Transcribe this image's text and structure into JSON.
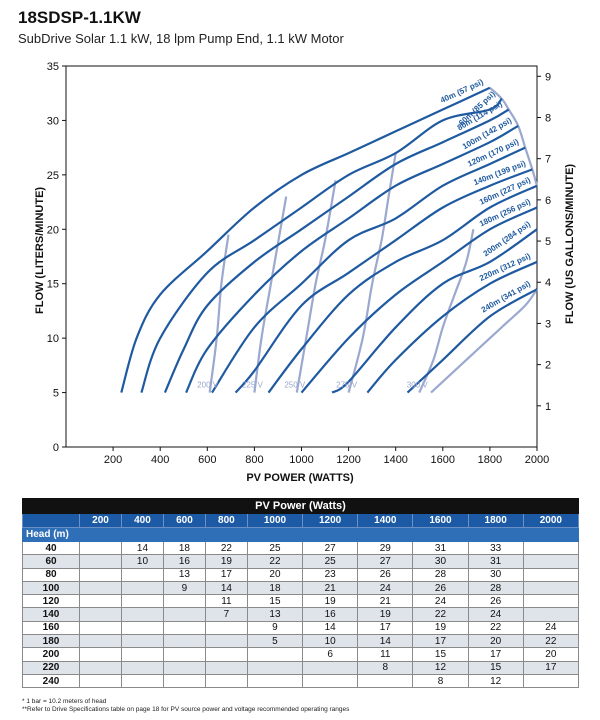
{
  "header": {
    "title": "18SDSP-1.1KW",
    "subtitle": "SubDrive Solar 1.1 kW, 18 lpm Pump End, 1.1 kW Motor"
  },
  "chart_data": {
    "type": "line",
    "xlabel": "PV POWER (WATTS)",
    "ylabel": "FLOW (LITERS/MINUTE)",
    "y2label": "FLOW (US GALLONS/MINUTE)",
    "xlim": [
      0,
      2000
    ],
    "ylim": [
      0,
      35
    ],
    "y2lim": [
      0,
      9.25
    ],
    "x_ticks": [
      200,
      400,
      600,
      800,
      1000,
      1200,
      1400,
      1600,
      1800,
      2000
    ],
    "y_ticks": [
      0,
      5,
      10,
      15,
      20,
      25,
      30,
      35
    ],
    "y2_ticks": [
      1,
      2,
      3,
      4,
      5,
      6,
      7,
      8,
      9
    ],
    "grid": false,
    "head_curves": [
      {
        "name": "40m (57 psi)",
        "points": [
          [
            235,
            5
          ],
          [
            300,
            10
          ],
          [
            400,
            14
          ],
          [
            600,
            18
          ],
          [
            800,
            22
          ],
          [
            1000,
            25
          ],
          [
            1200,
            27
          ],
          [
            1400,
            29
          ],
          [
            1600,
            31
          ],
          [
            1800,
            33
          ]
        ]
      },
      {
        "name": "60m (85 psi)",
        "points": [
          [
            320,
            5
          ],
          [
            400,
            10
          ],
          [
            600,
            16
          ],
          [
            800,
            19
          ],
          [
            1000,
            22
          ],
          [
            1200,
            25
          ],
          [
            1400,
            27
          ],
          [
            1600,
            30
          ],
          [
            1800,
            31
          ],
          [
            1850,
            32
          ]
        ]
      },
      {
        "name": "80m (114 psi)",
        "points": [
          [
            420,
            5
          ],
          [
            500,
            9
          ],
          [
            600,
            13
          ],
          [
            800,
            17
          ],
          [
            1000,
            20
          ],
          [
            1200,
            23
          ],
          [
            1400,
            26
          ],
          [
            1600,
            28
          ],
          [
            1800,
            30
          ],
          [
            1880,
            31
          ]
        ]
      },
      {
        "name": "100m (142 psi)",
        "points": [
          [
            510,
            5
          ],
          [
            600,
            9
          ],
          [
            800,
            14
          ],
          [
            1000,
            18
          ],
          [
            1200,
            21
          ],
          [
            1400,
            24
          ],
          [
            1600,
            26
          ],
          [
            1800,
            28
          ],
          [
            1920,
            29.5
          ]
        ]
      },
      {
        "name": "120m (170 psi)",
        "points": [
          [
            620,
            5
          ],
          [
            800,
            11
          ],
          [
            1000,
            15
          ],
          [
            1200,
            19
          ],
          [
            1400,
            21
          ],
          [
            1600,
            24
          ],
          [
            1800,
            26
          ],
          [
            1950,
            27.5
          ]
        ]
      },
      {
        "name": "140m (199 psi)",
        "points": [
          [
            720,
            5
          ],
          [
            800,
            7
          ],
          [
            1000,
            13
          ],
          [
            1200,
            16
          ],
          [
            1400,
            19
          ],
          [
            1600,
            22
          ],
          [
            1800,
            24
          ],
          [
            1980,
            25.5
          ]
        ]
      },
      {
        "name": "160m (227 psi)",
        "points": [
          [
            860,
            5
          ],
          [
            1000,
            9
          ],
          [
            1200,
            14
          ],
          [
            1400,
            17
          ],
          [
            1600,
            19
          ],
          [
            1800,
            22
          ],
          [
            2000,
            24
          ]
        ]
      },
      {
        "name": "180m (256 psi)",
        "points": [
          [
            1000,
            5
          ],
          [
            1200,
            10
          ],
          [
            1400,
            14
          ],
          [
            1600,
            17
          ],
          [
            1800,
            20
          ],
          [
            2000,
            22
          ]
        ]
      },
      {
        "name": "200m (284 psi)",
        "points": [
          [
            1130,
            5
          ],
          [
            1200,
            6
          ],
          [
            1400,
            11
          ],
          [
            1600,
            15
          ],
          [
            1800,
            17
          ],
          [
            2000,
            20
          ]
        ]
      },
      {
        "name": "220m (312 psi)",
        "points": [
          [
            1280,
            5
          ],
          [
            1400,
            8
          ],
          [
            1600,
            12
          ],
          [
            1800,
            15
          ],
          [
            2000,
            17
          ]
        ]
      },
      {
        "name": "240m (341 psi)",
        "points": [
          [
            1450,
            5
          ],
          [
            1600,
            8
          ],
          [
            1800,
            12
          ],
          [
            2000,
            14.5
          ]
        ]
      }
    ],
    "voltage_curves": [
      {
        "name": "200 V",
        "points": [
          [
            610,
            5
          ],
          [
            640,
            10
          ],
          [
            660,
            15
          ],
          [
            690,
            19.5
          ]
        ]
      },
      {
        "name": "225 V",
        "points": [
          [
            800,
            5
          ],
          [
            830,
            10
          ],
          [
            870,
            15
          ],
          [
            935,
            23
          ]
        ]
      },
      {
        "name": "250 V",
        "points": [
          [
            980,
            5
          ],
          [
            1020,
            10
          ],
          [
            1060,
            15
          ],
          [
            1100,
            19
          ],
          [
            1145,
            24.5
          ]
        ]
      },
      {
        "name": "275 V",
        "points": [
          [
            1200,
            5
          ],
          [
            1260,
            10
          ],
          [
            1300,
            15
          ],
          [
            1340,
            19
          ],
          [
            1370,
            23
          ],
          [
            1400,
            27
          ]
        ]
      },
      {
        "name": "300 V",
        "points": [
          [
            1500,
            5
          ],
          [
            1560,
            8
          ],
          [
            1600,
            11
          ],
          [
            1650,
            14
          ],
          [
            1700,
            17
          ],
          [
            1730,
            20
          ]
        ]
      }
    ],
    "boundary_curves": [
      {
        "points": [
          [
            1800,
            33
          ],
          [
            1850,
            32
          ],
          [
            1880,
            31
          ],
          [
            1920,
            29.5
          ],
          [
            1950,
            27.5
          ],
          [
            1980,
            25.5
          ],
          [
            2000,
            24
          ]
        ]
      },
      {
        "points": [
          [
            1550,
            5
          ],
          [
            1700,
            8
          ],
          [
            1850,
            11
          ],
          [
            1950,
            13
          ],
          [
            2000,
            14.5
          ]
        ]
      }
    ]
  },
  "table": {
    "super_header": "PV Power (Watts)",
    "head_col_label": "Head (m)",
    "columns": [
      "200",
      "400",
      "600",
      "800",
      "1000",
      "1200",
      "1400",
      "1600",
      "1800",
      "2000"
    ],
    "rows": [
      {
        "head": "40",
        "values": [
          "",
          "14",
          "18",
          "22",
          "25",
          "27",
          "29",
          "31",
          "33",
          ""
        ]
      },
      {
        "head": "60",
        "values": [
          "",
          "10",
          "16",
          "19",
          "22",
          "25",
          "27",
          "30",
          "31",
          ""
        ]
      },
      {
        "head": "80",
        "values": [
          "",
          "",
          "13",
          "17",
          "20",
          "23",
          "26",
          "28",
          "30",
          ""
        ]
      },
      {
        "head": "100",
        "values": [
          "",
          "",
          "9",
          "14",
          "18",
          "21",
          "24",
          "26",
          "28",
          ""
        ]
      },
      {
        "head": "120",
        "values": [
          "",
          "",
          "",
          "11",
          "15",
          "19",
          "21",
          "24",
          "26",
          ""
        ]
      },
      {
        "head": "140",
        "values": [
          "",
          "",
          "",
          "7",
          "13",
          "16",
          "19",
          "22",
          "24",
          ""
        ]
      },
      {
        "head": "160",
        "values": [
          "",
          "",
          "",
          "",
          "9",
          "14",
          "17",
          "19",
          "22",
          "24"
        ]
      },
      {
        "head": "180",
        "values": [
          "",
          "",
          "",
          "",
          "5",
          "10",
          "14",
          "17",
          "20",
          "22"
        ]
      },
      {
        "head": "200",
        "values": [
          "",
          "",
          "",
          "",
          "",
          "6",
          "11",
          "15",
          "17",
          "20"
        ]
      },
      {
        "head": "220",
        "values": [
          "",
          "",
          "",
          "",
          "",
          "",
          "8",
          "12",
          "15",
          "17"
        ]
      },
      {
        "head": "240",
        "values": [
          "",
          "",
          "",
          "",
          "",
          "",
          "",
          "8",
          "12",
          ""
        ]
      }
    ]
  },
  "footnotes": {
    "note1": "* 1 bar = 10.2 meters of head",
    "note2": "**Refer to Drive Specifications table on page 18 for PV source power and voltage recommended operating ranges"
  },
  "colors": {
    "head_curve": "#1f5aa0",
    "voltage_curve": "#9ba8cf",
    "table_header": "#111111",
    "table_blue": "#1c5aa6",
    "row_alt": "#dfe3ea"
  }
}
